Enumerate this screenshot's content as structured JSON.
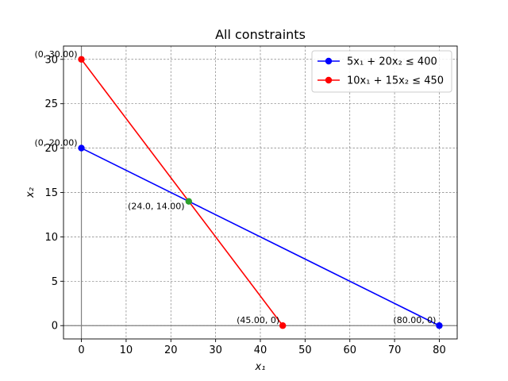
{
  "chart_data": {
    "type": "line",
    "title": "All constraints",
    "xlabel": "x₁",
    "ylabel": "x₂",
    "xlim": [
      -4,
      84
    ],
    "ylim": [
      -1.5,
      31.5
    ],
    "xticks": [
      0,
      10,
      20,
      30,
      40,
      50,
      60,
      70,
      80
    ],
    "yticks": [
      0,
      5,
      10,
      15,
      20,
      25,
      30
    ],
    "grid": true,
    "legend_position": "top-right",
    "series": [
      {
        "name": "5x₁ + 20x₂ ≤ 400",
        "color": "#0000ff",
        "points": [
          [
            0,
            20
          ],
          [
            80,
            0
          ]
        ]
      },
      {
        "name": "10x₁ + 15x₂ ≤ 450",
        "color": "#ff0000",
        "points": [
          [
            0,
            30
          ],
          [
            45,
            0
          ]
        ]
      }
    ],
    "intersection": {
      "x": 24,
      "y": 14,
      "color": "#2ca02c"
    },
    "annotations": [
      {
        "text": "(0, 30.00)",
        "x": 0,
        "y": 30
      },
      {
        "text": "(0, 20.00)",
        "x": 0,
        "y": 20
      },
      {
        "text": "(24.0, 14.00)",
        "x": 24,
        "y": 14
      },
      {
        "text": "(45.00, 0)",
        "x": 45,
        "y": 0
      },
      {
        "text": "(80.00, 0)",
        "x": 80,
        "y": 0
      }
    ]
  }
}
